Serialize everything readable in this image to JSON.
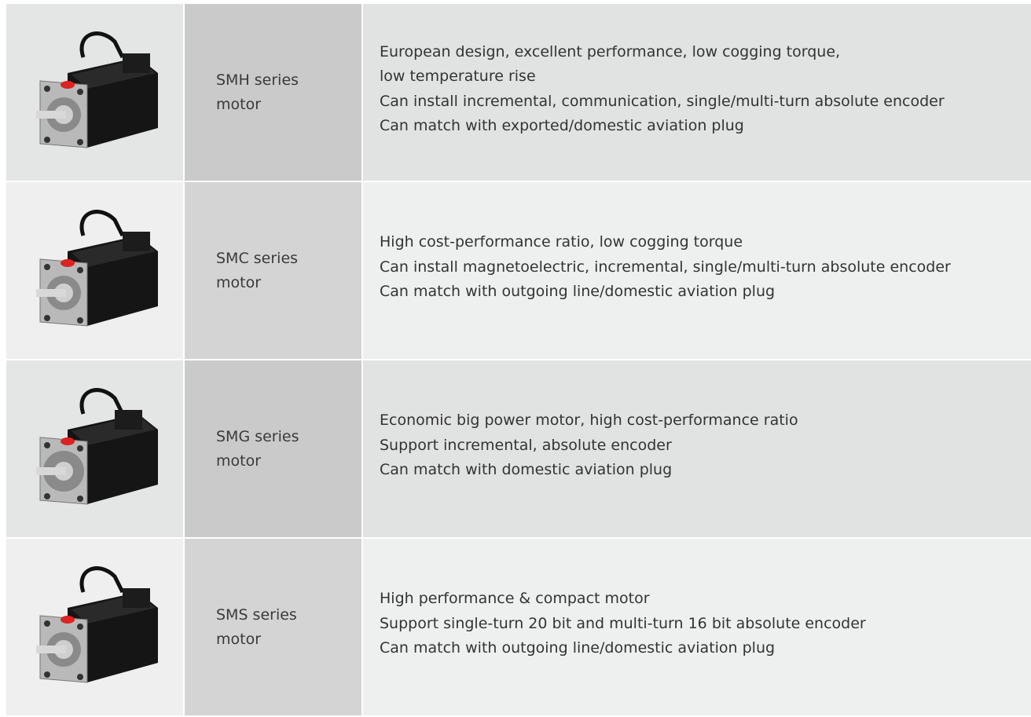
{
  "table": {
    "rows": [
      {
        "name": "SMH series motor",
        "lines": [
          "European design, excellent performance, low cogging torque,",
          "low temperature rise",
          "Can install incremental, communication, single/multi-turn absolute encoder",
          "Can match with exported/domestic aviation plug"
        ]
      },
      {
        "name": "SMC series motor",
        "lines": [
          "High cost-performance ratio, low cogging torque",
          "Can install magnetoelectric, incremental, single/multi-turn absolute encoder",
          "Can match with outgoing line/domestic aviation plug"
        ]
      },
      {
        "name": "SMG series motor",
        "lines": [
          "Economic big power motor, high cost-performance ratio",
          "Support incremental, absolute encoder",
          "Can match with domestic aviation plug"
        ]
      },
      {
        "name": "SMS series motor",
        "lines": [
          "High performance & compact motor",
          "Support single-turn 20 bit and multi-turn 16 bit absolute encoder",
          "Can match with outgoing line/domestic aviation plug"
        ]
      }
    ]
  }
}
